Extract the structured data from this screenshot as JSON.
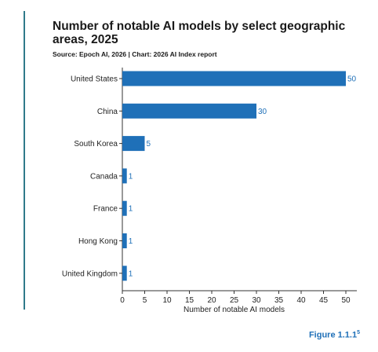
{
  "chart_data": {
    "type": "bar",
    "orientation": "horizontal",
    "title": "Number of notable AI models by select geographic areas, 2025",
    "subtitle": "Source: Epoch AI, 2026 | Chart: 2026 AI Index report",
    "categories": [
      "United States",
      "China",
      "South Korea",
      "Canada",
      "France",
      "Hong Kong",
      "United Kingdom"
    ],
    "values": [
      50,
      30,
      5,
      1,
      1,
      1,
      1
    ],
    "xlabel": "Number of notable AI models",
    "ylabel": "",
    "xlim": [
      0,
      50
    ],
    "xticks": [
      0,
      5,
      10,
      15,
      20,
      25,
      30,
      35,
      40,
      45,
      50
    ],
    "grid": false,
    "data_labels": true,
    "bar_color": "#1f70b8"
  },
  "figure": {
    "label": "Figure 1.1.1",
    "superscript": "5"
  },
  "colors": {
    "accent_rule": "#2f7a8a",
    "label_blue": "#1f70b8"
  }
}
